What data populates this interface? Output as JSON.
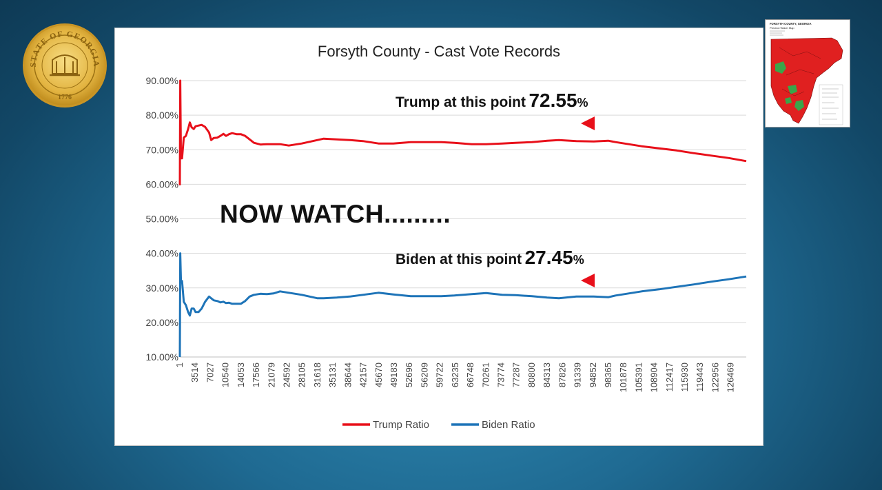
{
  "seal": {
    "text": "STATE OF GEORGIA",
    "year": "1776",
    "icon": "state-seal-icon"
  },
  "map_thumbnail": {
    "title": "FORSYTH COUNTY, GEORGIA",
    "subtitle": "Precinct Watch Map",
    "icon": "precinct-map-icon",
    "colors": {
      "red": "#e02020",
      "green": "#3aa64a"
    }
  },
  "annotations": {
    "trump_label": "Trump at this point",
    "trump_value": "72.55",
    "biden_label": "Biden at this point",
    "biden_value": "27.45",
    "percent_sign": "%",
    "watch": "NOW WATCH.........",
    "arrow_color": "#e8101a"
  },
  "chart_data": {
    "type": "line",
    "title": "Forsyth County - Cast Vote Records",
    "ylim": [
      0.1,
      0.9
    ],
    "y_ticks": [
      "90.00%",
      "80.00%",
      "70.00%",
      "60.00%",
      "50.00%",
      "40.00%",
      "30.00%",
      "20.00%",
      "10.00%"
    ],
    "y_tick_values": [
      0.9,
      0.8,
      0.7,
      0.6,
      0.5,
      0.4,
      0.3,
      0.2,
      0.1
    ],
    "xlim": [
      1,
      130000
    ],
    "x_ticks": [
      "1",
      "3514",
      "7027",
      "10540",
      "14053",
      "17566",
      "21079",
      "24592",
      "28105",
      "31618",
      "35131",
      "38644",
      "42157",
      "45670",
      "49183",
      "52696",
      "56209",
      "59722",
      "63235",
      "66748",
      "70261",
      "73774",
      "77287",
      "80800",
      "84313",
      "87826",
      "91339",
      "94852",
      "98365",
      "101878",
      "105391",
      "108904",
      "112417",
      "115930",
      "119443",
      "122956",
      "126469"
    ],
    "x_tick_values": [
      1,
      3514,
      7027,
      10540,
      14053,
      17566,
      21079,
      24592,
      28105,
      31618,
      35131,
      38644,
      42157,
      45670,
      49183,
      52696,
      56209,
      59722,
      63235,
      66748,
      70261,
      73774,
      77287,
      80800,
      84313,
      87826,
      91339,
      94852,
      98365,
      101878,
      105391,
      108904,
      112417,
      115930,
      119443,
      122956,
      126469
    ],
    "grid": true,
    "legend_position": "bottom",
    "series": [
      {
        "name": "Trump Ratio",
        "color": "#e8101a",
        "x": [
          1,
          100,
          250,
          500,
          900,
          1400,
          1900,
          2300,
          2700,
          3200,
          3600,
          4300,
          5000,
          5800,
          6700,
          7200,
          7800,
          8600,
          9300,
          10000,
          10600,
          11300,
          12000,
          13000,
          14000,
          15000,
          16000,
          17000,
          18500,
          20000,
          21500,
          23000,
          25000,
          28000,
          31600,
          33000,
          36000,
          39000,
          42000,
          45600,
          49000,
          53000,
          56000,
          60000,
          63000,
          67000,
          70300,
          74000,
          77000,
          80800,
          84300,
          87000,
          91000,
          95000,
          98300,
          100000,
          103000,
          106000,
          110000,
          114000,
          118000,
          122000,
          126000,
          130000
        ],
        "values": [
          0.597,
          0.9,
          0.675,
          0.675,
          0.735,
          0.74,
          0.76,
          0.779,
          0.765,
          0.76,
          0.768,
          0.77,
          0.772,
          0.766,
          0.75,
          0.728,
          0.734,
          0.735,
          0.74,
          0.746,
          0.74,
          0.745,
          0.748,
          0.745,
          0.745,
          0.74,
          0.73,
          0.72,
          0.715,
          0.716,
          0.716,
          0.716,
          0.712,
          0.718,
          0.728,
          0.732,
          0.73,
          0.728,
          0.725,
          0.718,
          0.718,
          0.722,
          0.722,
          0.722,
          0.72,
          0.716,
          0.716,
          0.718,
          0.72,
          0.722,
          0.726,
          0.728,
          0.725,
          0.724,
          0.726,
          0.722,
          0.716,
          0.71,
          0.704,
          0.698,
          0.69,
          0.683,
          0.676,
          0.667
        ]
      },
      {
        "name": "Biden Ratio",
        "color": "#1e74b8",
        "x": [
          1,
          100,
          250,
          500,
          900,
          1400,
          1900,
          2300,
          2700,
          3200,
          3600,
          4300,
          5000,
          5800,
          6700,
          7200,
          7800,
          8600,
          9300,
          10000,
          10600,
          11300,
          12000,
          13000,
          14000,
          15000,
          16000,
          17000,
          18500,
          20000,
          21500,
          23000,
          25000,
          28000,
          31600,
          33000,
          36000,
          39000,
          42000,
          45600,
          49000,
          53000,
          56000,
          60000,
          63000,
          67000,
          70300,
          74000,
          77000,
          80800,
          84300,
          87000,
          91000,
          95000,
          98300,
          100000,
          103000,
          106000,
          110000,
          114000,
          118000,
          122000,
          126000,
          130000
        ],
        "values": [
          0.1,
          0.4,
          0.32,
          0.32,
          0.26,
          0.25,
          0.23,
          0.22,
          0.24,
          0.24,
          0.23,
          0.23,
          0.24,
          0.26,
          0.275,
          0.27,
          0.264,
          0.262,
          0.258,
          0.26,
          0.256,
          0.257,
          0.254,
          0.254,
          0.254,
          0.262,
          0.275,
          0.28,
          0.283,
          0.282,
          0.284,
          0.29,
          0.286,
          0.28,
          0.27,
          0.27,
          0.272,
          0.275,
          0.28,
          0.286,
          0.281,
          0.276,
          0.276,
          0.276,
          0.278,
          0.282,
          0.285,
          0.28,
          0.279,
          0.276,
          0.272,
          0.27,
          0.275,
          0.275,
          0.273,
          0.278,
          0.284,
          0.29,
          0.296,
          0.303,
          0.31,
          0.318,
          0.325,
          0.333
        ]
      }
    ]
  }
}
